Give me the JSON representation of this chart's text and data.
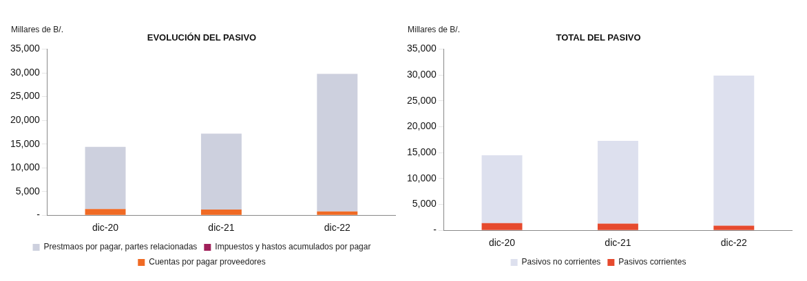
{
  "chart_data": [
    {
      "type": "bar",
      "title": "EVOLUCIÓN DEL PASIVO",
      "ylabel": "Millares de B/.",
      "categories": [
        "dic-20",
        "dic-21",
        "dic-22"
      ],
      "stacked": true,
      "legend": "bottom",
      "grid": false,
      "ylim": [
        0,
        35000
      ],
      "yticks": [
        {
          "value": 0,
          "label": "-"
        },
        {
          "value": 5000,
          "label": "5,000"
        },
        {
          "value": 10000,
          "label": "10,000"
        },
        {
          "value": 15000,
          "label": "15,000"
        },
        {
          "value": 20000,
          "label": "20,000"
        },
        {
          "value": 25000,
          "label": "25,000"
        },
        {
          "value": 30000,
          "label": "30,000"
        },
        {
          "value": 35000,
          "label": "35,000"
        }
      ],
      "series": [
        {
          "name": "Cuentas por pagar proveedores",
          "color": "#f06a24",
          "values": [
            1300,
            1200,
            800
          ]
        },
        {
          "name": "Impuestos y hastos acumulados por pagar",
          "color": "#a0205a",
          "values": [
            null,
            null,
            null
          ]
        },
        {
          "name": "Prestmaos por pagar, partes relacionadas",
          "color": "#cdd0de",
          "values": [
            13100,
            16000,
            29000
          ]
        }
      ]
    },
    {
      "type": "bar",
      "title": "TOTAL DEL PASIVO",
      "ylabel": "Millares de B/.",
      "categories": [
        "dic-20",
        "dic-21",
        "dic-22"
      ],
      "stacked": true,
      "legend": "bottom",
      "grid": false,
      "ylim": [
        0,
        35000
      ],
      "yticks": [
        {
          "value": 0,
          "label": "-"
        },
        {
          "value": 5000,
          "label": "5,000"
        },
        {
          "value": 10000,
          "label": "10,000"
        },
        {
          "value": 15000,
          "label": "15,000"
        },
        {
          "value": 20000,
          "label": "20,000"
        },
        {
          "value": 25000,
          "label": "25,000"
        },
        {
          "value": 30000,
          "label": "30,000"
        },
        {
          "value": 35000,
          "label": "35,000"
        }
      ],
      "series": [
        {
          "name": "Pasivos corrientes",
          "color": "#e64a2e",
          "values": [
            1400,
            1300,
            900
          ]
        },
        {
          "name": "Pasivos no corrientes",
          "color": "#dde0ee",
          "values": [
            13100,
            16000,
            29000
          ]
        }
      ]
    }
  ]
}
